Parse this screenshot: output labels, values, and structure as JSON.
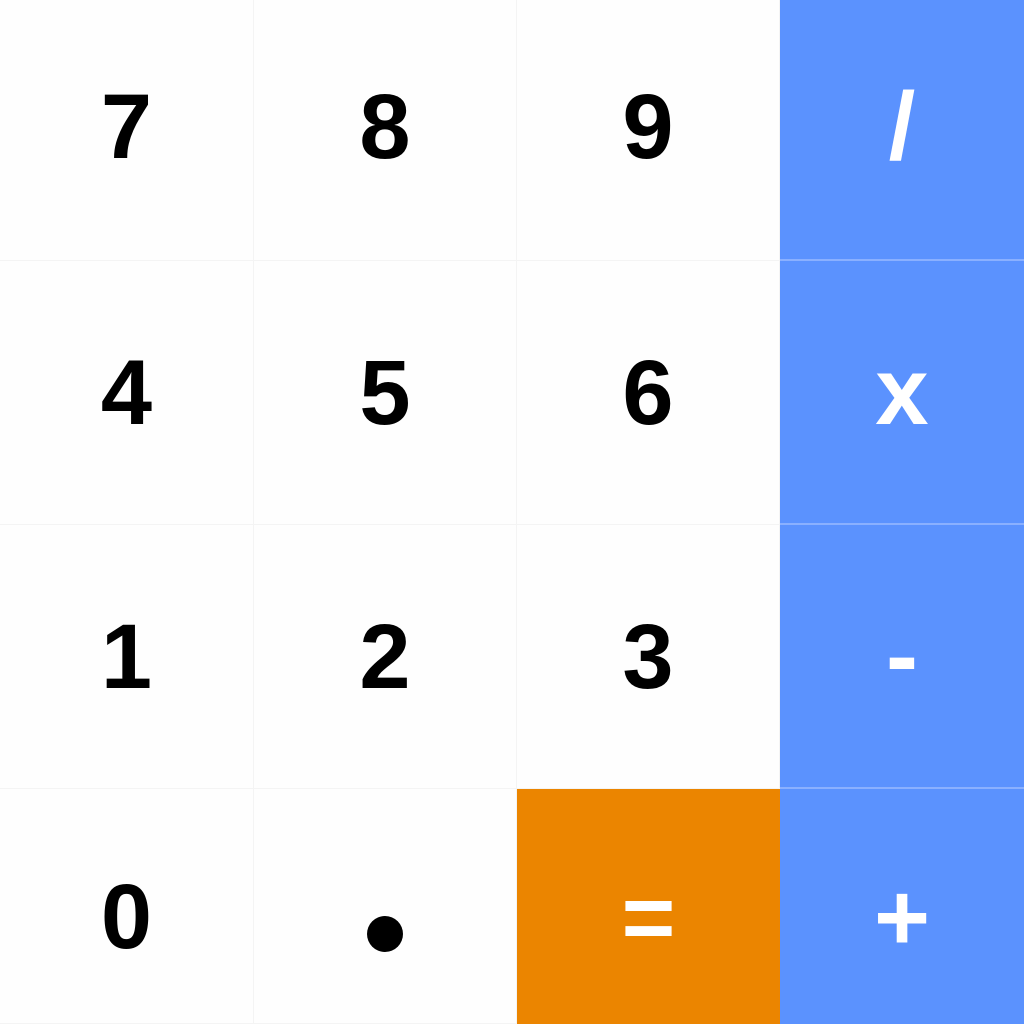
{
  "calculator": {
    "keys": {
      "seven": "7",
      "eight": "8",
      "nine": "9",
      "divide": "/",
      "four": "4",
      "five": "5",
      "six": "6",
      "multiply": "x",
      "one": "1",
      "two": "2",
      "three": "3",
      "subtract": "-",
      "zero": "0",
      "equals": "=",
      "add": "+"
    },
    "colors": {
      "digit_background": "#fefefe",
      "operator_background": "#5b92fe",
      "equals_background": "#eb8500",
      "digit_text": "#000000",
      "operator_text": "#ffffff"
    }
  }
}
